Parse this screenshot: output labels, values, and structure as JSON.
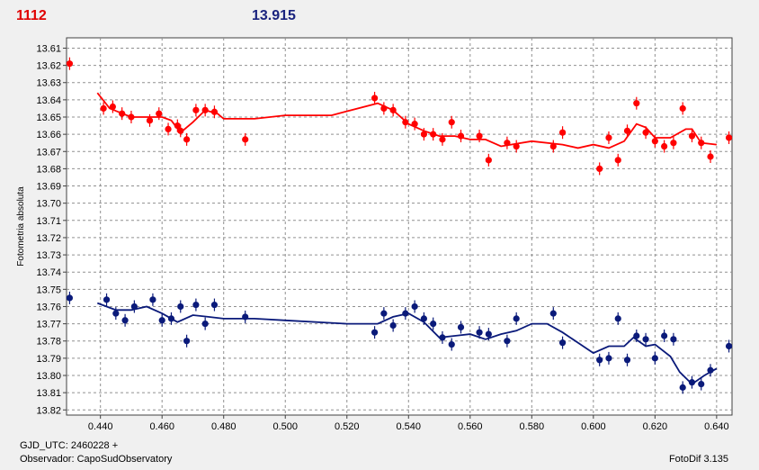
{
  "header": {
    "left": "1112",
    "right": "13.915"
  },
  "footer": {
    "line1": "GJD_UTC: 2460228 +",
    "line2": "Observador: CapoSudObservatory",
    "right": "FotoDif 3.135"
  },
  "colors": {
    "series1": "#ff0000",
    "series2": "#0a1a7a"
  },
  "chart_data": {
    "type": "scatter",
    "ylabel": "Fotometria absoluta",
    "xlim": [
      0.429,
      0.645
    ],
    "ylim": [
      13.604,
      13.823
    ],
    "y_inverted": true,
    "grid": true,
    "x_ticks": [
      "0.440",
      "0.460",
      "0.480",
      "0.500",
      "0.520",
      "0.540",
      "0.560",
      "0.580",
      "0.600",
      "0.620",
      "0.640"
    ],
    "y_ticks": [
      "13.61",
      "13.62",
      "13.63",
      "13.64",
      "13.65",
      "13.66",
      "13.67",
      "13.68",
      "13.69",
      "13.70",
      "13.71",
      "13.72",
      "13.73",
      "13.74",
      "13.75",
      "13.76",
      "13.77",
      "13.78",
      "13.79",
      "13.80",
      "13.81",
      "13.82"
    ],
    "series": [
      {
        "color": "#ff0000",
        "points": [
          [
            0.43,
            13.619
          ],
          [
            0.441,
            13.645
          ],
          [
            0.444,
            13.644
          ],
          [
            0.447,
            13.648
          ],
          [
            0.45,
            13.65
          ],
          [
            0.456,
            13.652
          ],
          [
            0.459,
            13.648
          ],
          [
            0.462,
            13.657
          ],
          [
            0.465,
            13.655
          ],
          [
            0.466,
            13.658
          ],
          [
            0.468,
            13.663
          ],
          [
            0.471,
            13.646
          ],
          [
            0.474,
            13.646
          ],
          [
            0.477,
            13.647
          ],
          [
            0.487,
            13.663
          ],
          [
            0.529,
            13.639
          ],
          [
            0.532,
            13.645
          ],
          [
            0.535,
            13.646
          ],
          [
            0.539,
            13.653
          ],
          [
            0.542,
            13.654
          ],
          [
            0.545,
            13.66
          ],
          [
            0.548,
            13.66
          ],
          [
            0.551,
            13.663
          ],
          [
            0.554,
            13.653
          ],
          [
            0.557,
            13.661
          ],
          [
            0.563,
            13.661
          ],
          [
            0.566,
            13.675
          ],
          [
            0.572,
            13.665
          ],
          [
            0.575,
            13.667
          ],
          [
            0.587,
            13.667
          ],
          [
            0.59,
            13.659
          ],
          [
            0.602,
            13.68
          ],
          [
            0.605,
            13.662
          ],
          [
            0.608,
            13.675
          ],
          [
            0.611,
            13.658
          ],
          [
            0.614,
            13.642
          ],
          [
            0.617,
            13.659
          ],
          [
            0.62,
            13.664
          ],
          [
            0.623,
            13.667
          ],
          [
            0.626,
            13.665
          ],
          [
            0.629,
            13.645
          ],
          [
            0.632,
            13.661
          ],
          [
            0.635,
            13.665
          ],
          [
            0.638,
            13.673
          ],
          [
            0.644,
            13.662
          ]
        ],
        "trend": [
          [
            0.439,
            13.636
          ],
          [
            0.443,
            13.645
          ],
          [
            0.45,
            13.65
          ],
          [
            0.46,
            13.65
          ],
          [
            0.463,
            13.652
          ],
          [
            0.466,
            13.659
          ],
          [
            0.47,
            13.653
          ],
          [
            0.474,
            13.646
          ],
          [
            0.478,
            13.648
          ],
          [
            0.48,
            13.651
          ],
          [
            0.49,
            13.651
          ],
          [
            0.5,
            13.649
          ],
          [
            0.515,
            13.649
          ],
          [
            0.53,
            13.642
          ],
          [
            0.535,
            13.646
          ],
          [
            0.54,
            13.654
          ],
          [
            0.545,
            13.658
          ],
          [
            0.55,
            13.661
          ],
          [
            0.555,
            13.661
          ],
          [
            0.56,
            13.663
          ],
          [
            0.565,
            13.663
          ],
          [
            0.57,
            13.667
          ],
          [
            0.58,
            13.664
          ],
          [
            0.59,
            13.666
          ],
          [
            0.595,
            13.668
          ],
          [
            0.6,
            13.666
          ],
          [
            0.605,
            13.668
          ],
          [
            0.61,
            13.664
          ],
          [
            0.614,
            13.654
          ],
          [
            0.617,
            13.656
          ],
          [
            0.62,
            13.662
          ],
          [
            0.625,
            13.662
          ],
          [
            0.63,
            13.657
          ],
          [
            0.632,
            13.657
          ],
          [
            0.635,
            13.665
          ],
          [
            0.64,
            13.666
          ]
        ]
      },
      {
        "color": "#0a1a7a",
        "points": [
          [
            0.43,
            13.755
          ],
          [
            0.442,
            13.756
          ],
          [
            0.445,
            13.764
          ],
          [
            0.448,
            13.768
          ],
          [
            0.451,
            13.76
          ],
          [
            0.457,
            13.756
          ],
          [
            0.46,
            13.768
          ],
          [
            0.463,
            13.767
          ],
          [
            0.466,
            13.76
          ],
          [
            0.468,
            13.78
          ],
          [
            0.471,
            13.759
          ],
          [
            0.474,
            13.77
          ],
          [
            0.477,
            13.759
          ],
          [
            0.487,
            13.766
          ],
          [
            0.529,
            13.775
          ],
          [
            0.532,
            13.764
          ],
          [
            0.535,
            13.771
          ],
          [
            0.539,
            13.764
          ],
          [
            0.542,
            13.76
          ],
          [
            0.545,
            13.767
          ],
          [
            0.548,
            13.77
          ],
          [
            0.551,
            13.778
          ],
          [
            0.554,
            13.782
          ],
          [
            0.557,
            13.772
          ],
          [
            0.563,
            13.775
          ],
          [
            0.566,
            13.776
          ],
          [
            0.572,
            13.78
          ],
          [
            0.575,
            13.767
          ],
          [
            0.587,
            13.764
          ],
          [
            0.59,
            13.781
          ],
          [
            0.602,
            13.791
          ],
          [
            0.605,
            13.79
          ],
          [
            0.608,
            13.767
          ],
          [
            0.611,
            13.791
          ],
          [
            0.614,
            13.777
          ],
          [
            0.617,
            13.779
          ],
          [
            0.62,
            13.79
          ],
          [
            0.623,
            13.777
          ],
          [
            0.626,
            13.779
          ],
          [
            0.629,
            13.807
          ],
          [
            0.632,
            13.804
          ],
          [
            0.635,
            13.805
          ],
          [
            0.638,
            13.797
          ],
          [
            0.644,
            13.783
          ]
        ],
        "trend": [
          [
            0.439,
            13.758
          ],
          [
            0.445,
            13.762
          ],
          [
            0.45,
            13.762
          ],
          [
            0.455,
            13.76
          ],
          [
            0.46,
            13.764
          ],
          [
            0.465,
            13.769
          ],
          [
            0.47,
            13.765
          ],
          [
            0.475,
            13.766
          ],
          [
            0.48,
            13.767
          ],
          [
            0.49,
            13.767
          ],
          [
            0.5,
            13.768
          ],
          [
            0.52,
            13.77
          ],
          [
            0.53,
            13.77
          ],
          [
            0.535,
            13.766
          ],
          [
            0.54,
            13.764
          ],
          [
            0.545,
            13.769
          ],
          [
            0.55,
            13.778
          ],
          [
            0.56,
            13.776
          ],
          [
            0.565,
            13.779
          ],
          [
            0.57,
            13.776
          ],
          [
            0.575,
            13.774
          ],
          [
            0.58,
            13.77
          ],
          [
            0.585,
            13.77
          ],
          [
            0.59,
            13.775
          ],
          [
            0.6,
            13.787
          ],
          [
            0.605,
            13.783
          ],
          [
            0.61,
            13.783
          ],
          [
            0.613,
            13.778
          ],
          [
            0.617,
            13.783
          ],
          [
            0.62,
            13.782
          ],
          [
            0.625,
            13.789
          ],
          [
            0.628,
            13.798
          ],
          [
            0.632,
            13.805
          ],
          [
            0.636,
            13.8
          ],
          [
            0.64,
            13.796
          ]
        ]
      }
    ]
  }
}
